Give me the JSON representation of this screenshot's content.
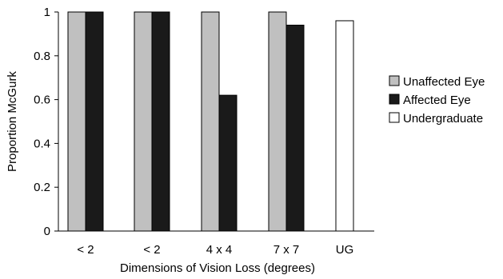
{
  "chart_data": {
    "type": "bar",
    "categories": [
      "< 2",
      "< 2",
      "4 x 4",
      "7 x 7",
      "UG"
    ],
    "series": [
      {
        "name": "Unaffected Eye",
        "color": "#c0c0c0",
        "values": [
          1,
          1,
          1,
          1,
          null
        ]
      },
      {
        "name": "Affected Eye",
        "color": "#1a1a1a",
        "values": [
          1,
          1,
          0.62,
          0.94,
          null
        ]
      },
      {
        "name": "Undergraduate",
        "color": "#ffffff",
        "values": [
          null,
          null,
          null,
          null,
          0.96
        ]
      }
    ],
    "xlabel": "Dimensions of Vision Loss (degrees)",
    "ylabel": "Proportion McGurk",
    "ylim": [
      0,
      1
    ],
    "yticks": [
      "0",
      "0.2",
      "0.4",
      "0.6",
      "0.8",
      "1"
    ],
    "grid": false,
    "legend_position": "right"
  }
}
